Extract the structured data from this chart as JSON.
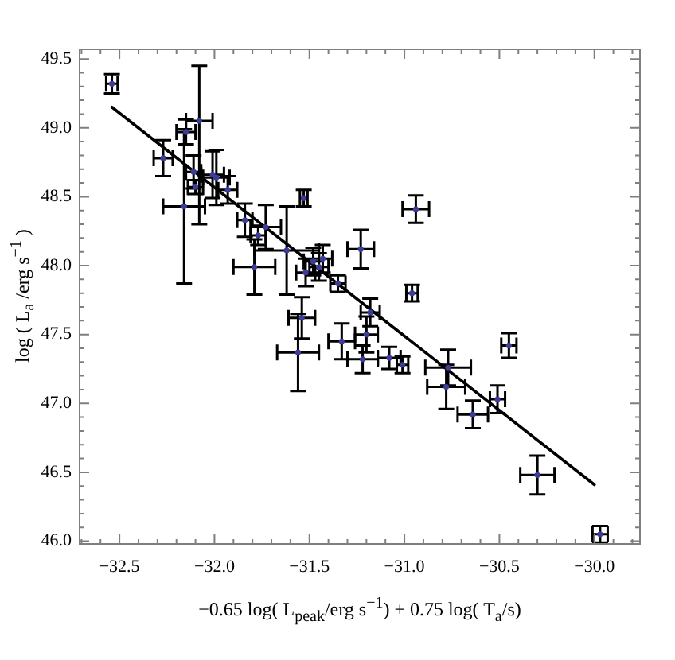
{
  "chart_data": {
    "type": "scatter",
    "xlabel": "−0.65 log( L$_{peak}$/erg s$^{−1}$) + 0.75 log( T$_{a}$/s)",
    "ylabel": "log ( L$_{a}$ /erg s$^{−1}$ )",
    "xlim": [
      -32.71,
      -29.76
    ],
    "ylim": [
      45.98,
      49.57
    ],
    "xticks": [
      {
        "value": -32.7,
        "label": null
      },
      {
        "value": -32.6,
        "label": null
      },
      {
        "value": -32.5,
        "label": "−32.5"
      },
      {
        "value": -32.4,
        "label": null
      },
      {
        "value": -32.3,
        "label": null
      },
      {
        "value": -32.2,
        "label": null
      },
      {
        "value": -32.1,
        "label": null
      },
      {
        "value": -32.0,
        "label": "−32.0"
      },
      {
        "value": -31.9,
        "label": null
      },
      {
        "value": -31.8,
        "label": null
      },
      {
        "value": -31.7,
        "label": null
      },
      {
        "value": -31.6,
        "label": null
      },
      {
        "value": -31.5,
        "label": "−31.5"
      },
      {
        "value": -31.4,
        "label": null
      },
      {
        "value": -31.3,
        "label": null
      },
      {
        "value": -31.2,
        "label": null
      },
      {
        "value": -31.1,
        "label": null
      },
      {
        "value": -31.0,
        "label": "−31.0"
      },
      {
        "value": -30.9,
        "label": null
      },
      {
        "value": -30.8,
        "label": null
      },
      {
        "value": -30.7,
        "label": null
      },
      {
        "value": -30.6,
        "label": null
      },
      {
        "value": -30.5,
        "label": "−30.5"
      },
      {
        "value": -30.4,
        "label": null
      },
      {
        "value": -30.3,
        "label": null
      },
      {
        "value": -30.2,
        "label": null
      },
      {
        "value": -30.1,
        "label": null
      },
      {
        "value": -30.0,
        "label": "−30.0"
      },
      {
        "value": -29.9,
        "label": null
      },
      {
        "value": -29.8,
        "label": null
      }
    ],
    "yticks": [
      {
        "value": 46.0,
        "label": "46.0"
      },
      {
        "value": 46.1,
        "label": null
      },
      {
        "value": 46.2,
        "label": null
      },
      {
        "value": 46.3,
        "label": null
      },
      {
        "value": 46.4,
        "label": null
      },
      {
        "value": 46.5,
        "label": "46.5"
      },
      {
        "value": 46.6,
        "label": null
      },
      {
        "value": 46.7,
        "label": null
      },
      {
        "value": 46.8,
        "label": null
      },
      {
        "value": 46.9,
        "label": null
      },
      {
        "value": 47.0,
        "label": "47.0"
      },
      {
        "value": 47.1,
        "label": null
      },
      {
        "value": 47.2,
        "label": null
      },
      {
        "value": 47.3,
        "label": null
      },
      {
        "value": 47.4,
        "label": null
      },
      {
        "value": 47.5,
        "label": "47.5"
      },
      {
        "value": 47.6,
        "label": null
      },
      {
        "value": 47.7,
        "label": null
      },
      {
        "value": 47.8,
        "label": null
      },
      {
        "value": 47.9,
        "label": null
      },
      {
        "value": 48.0,
        "label": "48.0"
      },
      {
        "value": 48.1,
        "label": null
      },
      {
        "value": 48.2,
        "label": null
      },
      {
        "value": 48.3,
        "label": null
      },
      {
        "value": 48.4,
        "label": null
      },
      {
        "value": 48.5,
        "label": "48.5"
      },
      {
        "value": 48.6,
        "label": null
      },
      {
        "value": 48.7,
        "label": null
      },
      {
        "value": 48.8,
        "label": null
      },
      {
        "value": 48.9,
        "label": null
      },
      {
        "value": 49.0,
        "label": "49.0"
      },
      {
        "value": 49.1,
        "label": null
      },
      {
        "value": 49.2,
        "label": null
      },
      {
        "value": 49.3,
        "label": null
      },
      {
        "value": 49.4,
        "label": null
      },
      {
        "value": 49.5,
        "label": "49.5"
      }
    ],
    "grid": false,
    "legend": false,
    "series": [
      {
        "type": "scatter",
        "color": "#3d3d99",
        "marker": "circle",
        "x": [
          -32.54,
          -32.27,
          -32.15,
          -32.08,
          -32.16,
          -32.11,
          -32.1,
          -32.01,
          -31.99,
          -31.93,
          -31.84,
          -31.77,
          -31.73,
          -31.79,
          -31.62,
          -31.53,
          -30.94,
          -31.23,
          -31.48,
          -31.45,
          -31.52,
          -31.43,
          -31.35,
          -31.54,
          -31.56,
          -31.18,
          -31.2,
          -31.33,
          -31.22,
          -31.08,
          -31.01,
          -30.96,
          -30.77,
          -30.78,
          -30.64,
          -30.51,
          -30.45,
          -30.3,
          -29.97
        ],
        "values": [
          49.32,
          48.78,
          48.97,
          49.05,
          48.43,
          48.68,
          48.57,
          48.66,
          48.64,
          48.55,
          48.33,
          48.22,
          48.28,
          47.99,
          48.11,
          48.49,
          48.41,
          48.12,
          48.03,
          47.99,
          47.95,
          48.05,
          47.87,
          47.62,
          47.37,
          47.66,
          47.5,
          47.45,
          47.32,
          47.33,
          47.28,
          47.8,
          47.26,
          47.12,
          46.92,
          47.03,
          47.42,
          46.48,
          46.05
        ],
        "errors": [
          0.07,
          0.13,
          0.09,
          [
            48.3,
            49.45
          ],
          0.56,
          0.12,
          0.05,
          0.17,
          0.2,
          0.1,
          0.12,
          0.07,
          0.16,
          0.2,
          0.32,
          0.06,
          0.1,
          0.14,
          0.1,
          0.1,
          0.1,
          0.1,
          0.06,
          0.15,
          0.28,
          0.1,
          0.13,
          0.13,
          0.1,
          0.08,
          0.06,
          0.06,
          0.13,
          0.16,
          0.1,
          0.1,
          0.09,
          0.14,
          0.06
        ],
        "xerrors": [
          0.03,
          0.05,
          0.05,
          0.07,
          0.11,
          0.04,
          0.04,
          0.06,
          0.07,
          0.05,
          0.04,
          0.04,
          0.08,
          0.11,
          0.17,
          0.02,
          0.07,
          0.07,
          0.05,
          0.05,
          0.05,
          0.05,
          0.04,
          0.07,
          0.11,
          0.05,
          0.06,
          0.07,
          0.08,
          0.06,
          0.03,
          0.03,
          0.12,
          0.1,
          0.08,
          0.04,
          0.04,
          0.09,
          0.04
        ]
      },
      {
        "type": "line",
        "color": "#000000",
        "marker": "none",
        "line_style": "solid",
        "x": [
          -32.54,
          -30.0
        ],
        "values": [
          49.15,
          46.41
        ]
      }
    ]
  }
}
